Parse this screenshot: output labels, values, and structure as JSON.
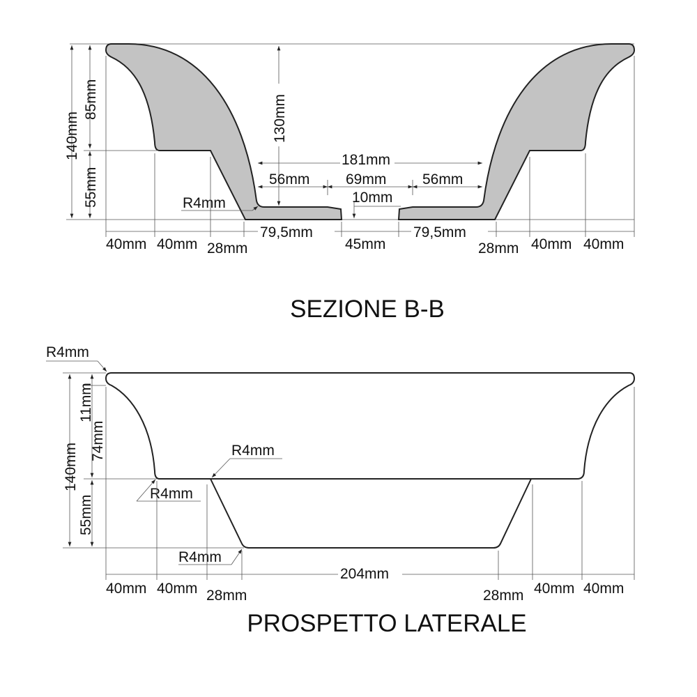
{
  "section": {
    "title": "SEZIONE B-B",
    "fill_color": "#c3c3c3",
    "dims": {
      "total_height": "140mm",
      "upper_height": "85mm",
      "lower_height": "55mm",
      "depth": "130mm",
      "width_inner": "181mm",
      "left_56": "56mm",
      "middle_69": "69mm",
      "right_56": "56mm",
      "thickness": "10mm",
      "radius": "R4mm",
      "left_40a": "40mm",
      "left_40b": "40mm",
      "left_28": "28mm",
      "left_795": "79,5mm",
      "gap_45": "45mm",
      "right_795": "79,5mm",
      "right_28": "28mm",
      "right_40a": "40mm",
      "right_40b": "40mm"
    }
  },
  "elevation": {
    "title": "PROSPETTO LATERALE",
    "dims": {
      "radius_top": "R4mm",
      "rim_height": "11mm",
      "curve_height": "74mm",
      "total_height": "140mm",
      "lower_height": "55mm",
      "radius_step": "R4mm",
      "radius_inner": "R4mm",
      "radius_bottom": "R4mm",
      "bottom_width": "204mm",
      "left_40a": "40mm",
      "left_40b": "40mm",
      "left_28": "28mm",
      "right_28": "28mm",
      "right_40a": "40mm",
      "right_40b": "40mm"
    }
  }
}
